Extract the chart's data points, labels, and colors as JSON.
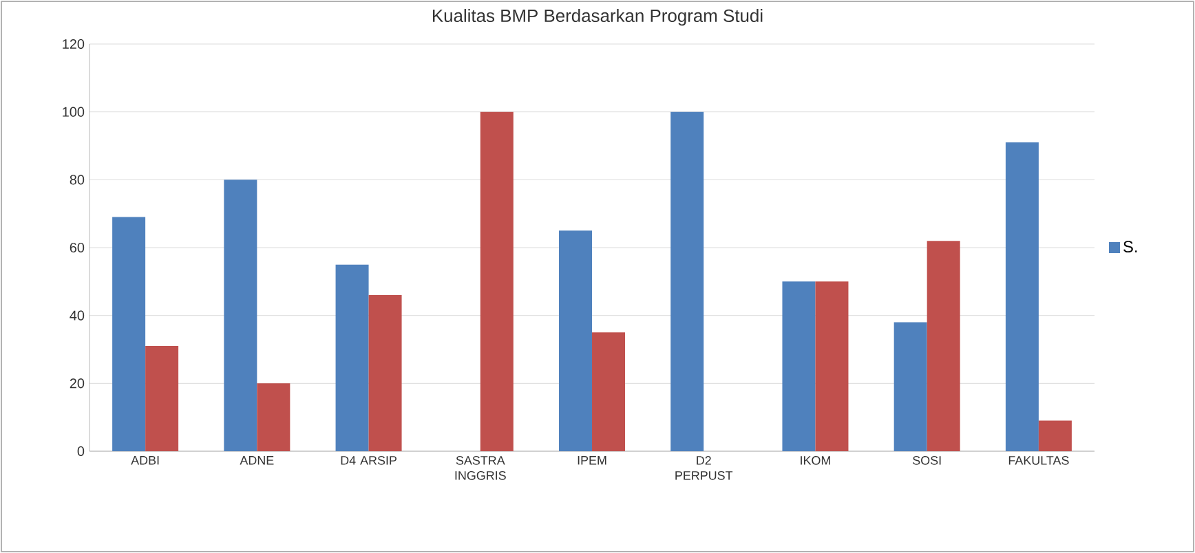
{
  "chart_data": {
    "type": "bar",
    "title": "Kualitas BMP Berdasarkan Program Studi",
    "categories": [
      "ADBI",
      "ADNE",
      "D4 ARSIP",
      "SASTRA INGGRIS",
      "IPEM",
      "D2 PERPUST",
      "IKOM",
      "SOSI",
      "FAKULTAS"
    ],
    "series": [
      {
        "name": "S.",
        "color": "#4f81bd",
        "values": [
          69,
          80,
          55,
          0,
          65,
          100,
          50,
          38,
          91
        ]
      },
      {
        "color": "#c0504d",
        "values": [
          31,
          20,
          46,
          100,
          35,
          0,
          50,
          62,
          9
        ]
      }
    ],
    "ylim": [
      0,
      120
    ],
    "yticks": [
      0,
      20,
      40,
      60,
      80,
      100,
      120
    ],
    "grid": "y",
    "legend": "right"
  }
}
